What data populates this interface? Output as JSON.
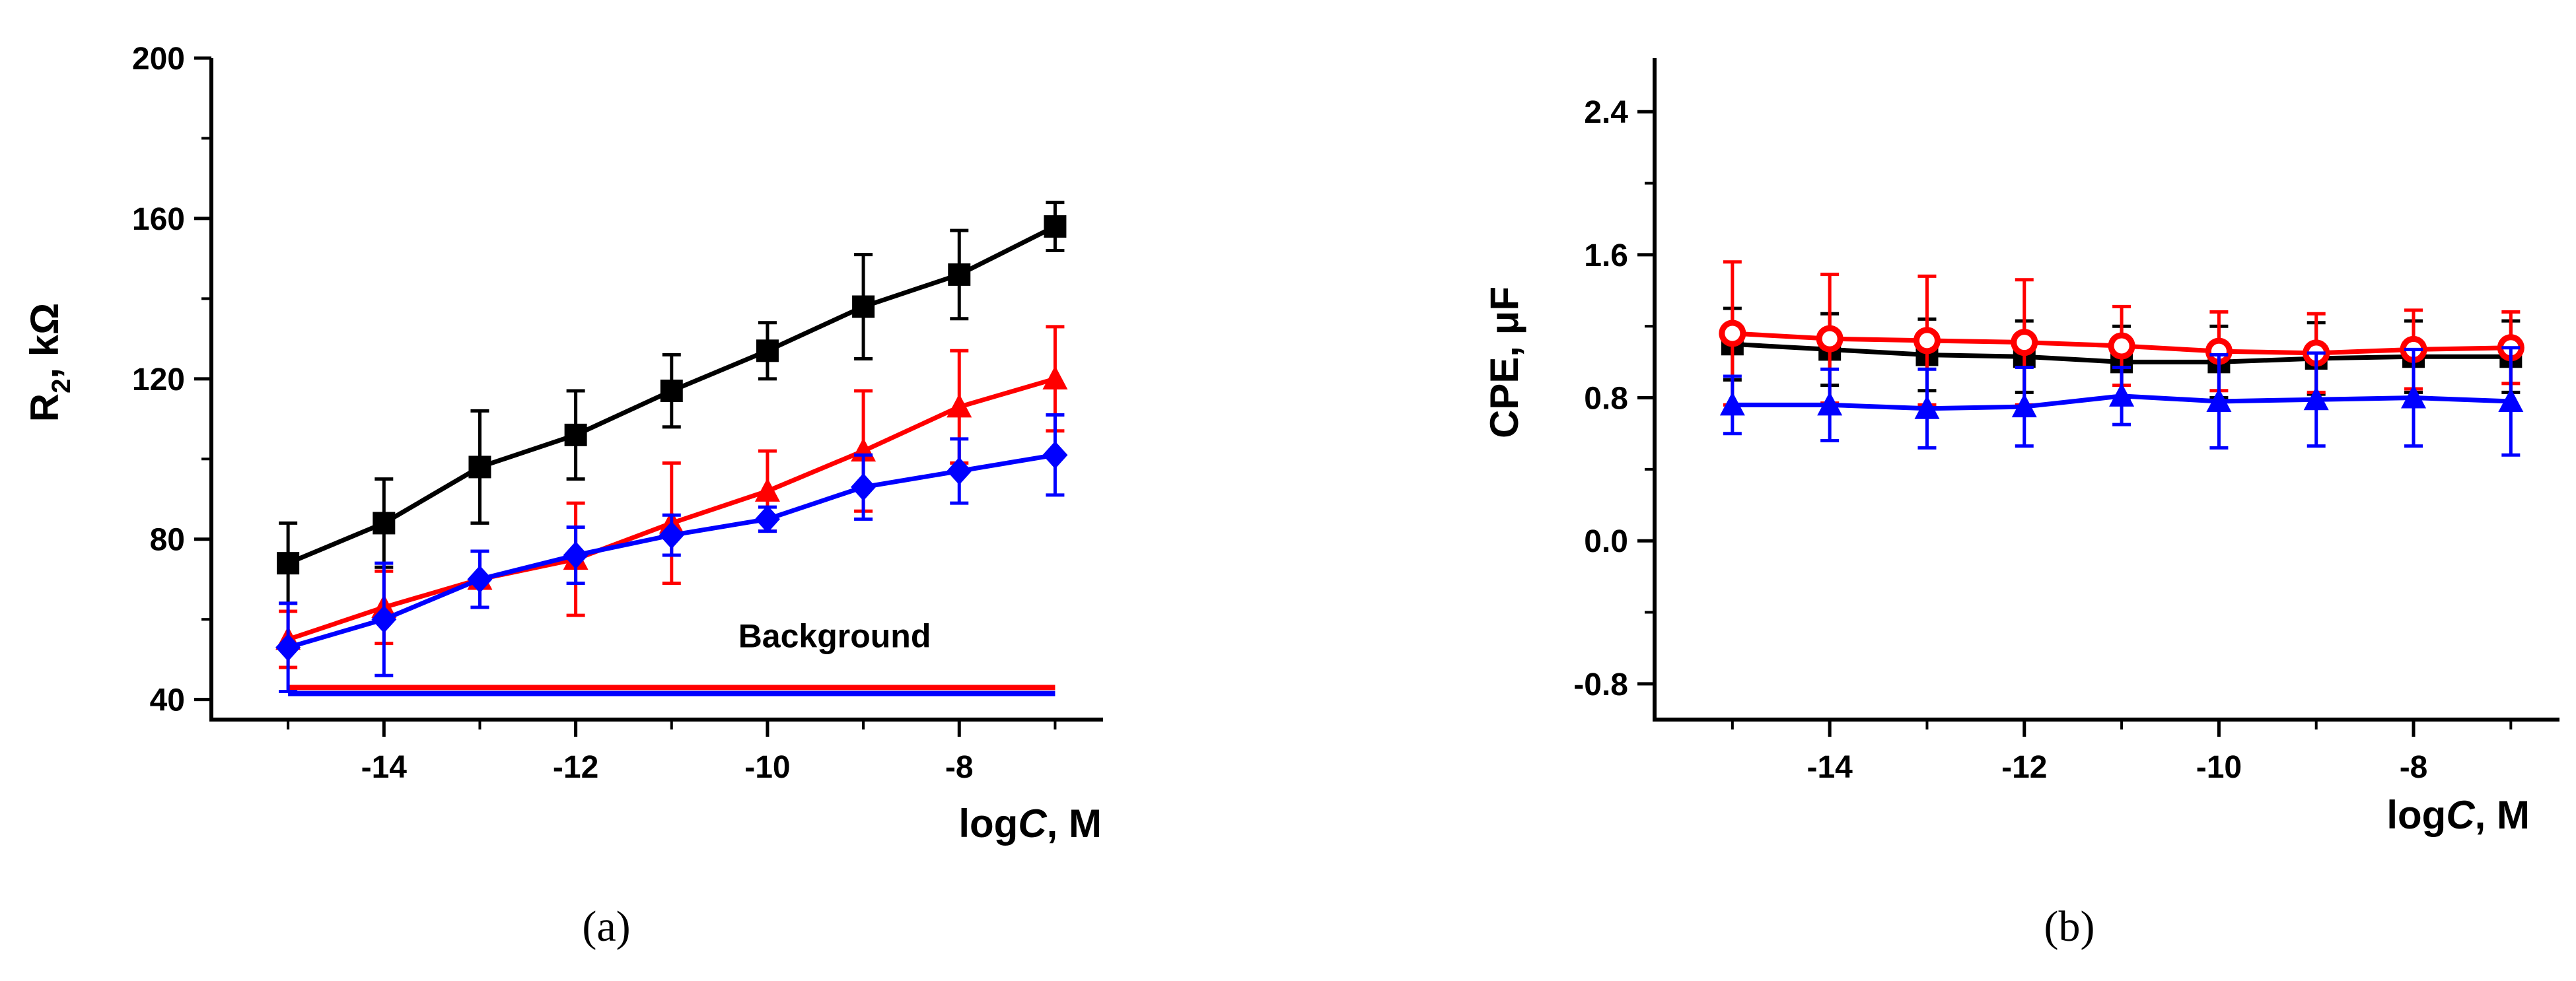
{
  "chart_data": [
    {
      "type": "line",
      "panel": "a",
      "caption": "(a)",
      "xlabel_main": "log",
      "xlabel_italic": "C",
      "xlabel_unit": ", M",
      "ylabel_main": "R",
      "ylabel_sub": "2",
      "ylabel_unit": ", kΩ",
      "xlim": [
        -15.8,
        -6.5
      ],
      "ylim": [
        35,
        200
      ],
      "x_major_ticks": [
        -14,
        -12,
        -10,
        -8
      ],
      "x_tick_labels": [
        "-14",
        "-12",
        "-10",
        "-8"
      ],
      "x_minor_ticks": [
        -15,
        -13,
        -11,
        -9,
        -7
      ],
      "y_major_ticks": [
        40,
        80,
        120,
        160,
        200
      ],
      "y_tick_labels": [
        "40",
        "80",
        "120",
        "160",
        "200"
      ],
      "y_minor_ticks": [
        60,
        100,
        140,
        180
      ],
      "annotation": "Background",
      "background_lines": [
        {
          "color": "#ff0000",
          "y": 43,
          "x": [
            -15,
            -7
          ]
        },
        {
          "color": "#0000ff",
          "y": 41.5,
          "x": [
            -15,
            -7
          ]
        }
      ],
      "series": [
        {
          "name": "black",
          "color": "#000000",
          "marker": "square",
          "x": [
            -15,
            -14,
            -13,
            -12,
            -11,
            -10,
            -9,
            -8,
            -7
          ],
          "y": [
            74,
            84,
            98,
            106,
            117,
            127,
            138,
            146,
            158
          ],
          "err": [
            10,
            11,
            14,
            11,
            9,
            7,
            13,
            11,
            6
          ]
        },
        {
          "name": "red",
          "color": "#ff0000",
          "marker": "triangle",
          "x": [
            -15,
            -14,
            -13,
            -12,
            -11,
            -10,
            -9,
            -8,
            -7
          ],
          "y": [
            55,
            63,
            70,
            75,
            84,
            92,
            102,
            113,
            120
          ],
          "err": [
            7,
            9,
            7,
            14,
            15,
            10,
            15,
            14,
            13
          ]
        },
        {
          "name": "blue",
          "color": "#0000ff",
          "marker": "diamond",
          "x": [
            -15,
            -14,
            -13,
            -12,
            -11,
            -10,
            -9,
            -8,
            -7
          ],
          "y": [
            53,
            60,
            70,
            76,
            81,
            85,
            93,
            97,
            101
          ],
          "err": [
            11,
            14,
            7,
            7,
            5,
            3,
            8,
            8,
            10
          ]
        }
      ]
    },
    {
      "type": "line",
      "panel": "b",
      "caption": "(b)",
      "xlabel_main": "log",
      "xlabel_italic": "C",
      "xlabel_unit": ", M",
      "ylabel_main": "CPE, μF",
      "xlim": [
        -15.8,
        -6.5
      ],
      "ylim": [
        -1.0,
        2.7
      ],
      "x_major_ticks": [
        -14,
        -12,
        -10,
        -8
      ],
      "x_tick_labels": [
        "-14",
        "-12",
        "-10",
        "-8"
      ],
      "x_minor_ticks": [
        -15,
        -13,
        -11,
        -9,
        -7
      ],
      "y_major_ticks": [
        -0.8,
        0.0,
        0.8,
        1.6,
        2.4
      ],
      "y_tick_labels": [
        "-0.8",
        "0.0",
        "0.8",
        "1.6",
        "2.4"
      ],
      "y_minor_ticks": [
        -0.4,
        0.4,
        1.2,
        2.0
      ],
      "series": [
        {
          "name": "black",
          "color": "#000000",
          "marker": "square",
          "x": [
            -15,
            -14,
            -13,
            -12,
            -11,
            -10,
            -9,
            -8,
            -7
          ],
          "y": [
            1.1,
            1.07,
            1.04,
            1.03,
            1.0,
            1.0,
            1.02,
            1.03,
            1.03
          ],
          "err": [
            0.2,
            0.2,
            0.2,
            0.2,
            0.2,
            0.2,
            0.2,
            0.2,
            0.2
          ]
        },
        {
          "name": "red",
          "color": "#ff0000",
          "marker": "circle",
          "x": [
            -15,
            -14,
            -13,
            -12,
            -11,
            -10,
            -9,
            -8,
            -7
          ],
          "y": [
            1.16,
            1.13,
            1.12,
            1.11,
            1.09,
            1.06,
            1.05,
            1.07,
            1.08
          ],
          "err": [
            0.4,
            0.36,
            0.36,
            0.35,
            0.22,
            0.22,
            0.22,
            0.22,
            0.2
          ]
        },
        {
          "name": "blue",
          "color": "#0000ff",
          "marker": "triangle",
          "x": [
            -15,
            -14,
            -13,
            -12,
            -11,
            -10,
            -9,
            -8,
            -7
          ],
          "y": [
            0.76,
            0.76,
            0.74,
            0.75,
            0.81,
            0.78,
            0.79,
            0.8,
            0.78
          ],
          "err": [
            0.16,
            0.2,
            0.22,
            0.22,
            0.16,
            0.26,
            0.26,
            0.27,
            0.3
          ]
        }
      ]
    }
  ]
}
